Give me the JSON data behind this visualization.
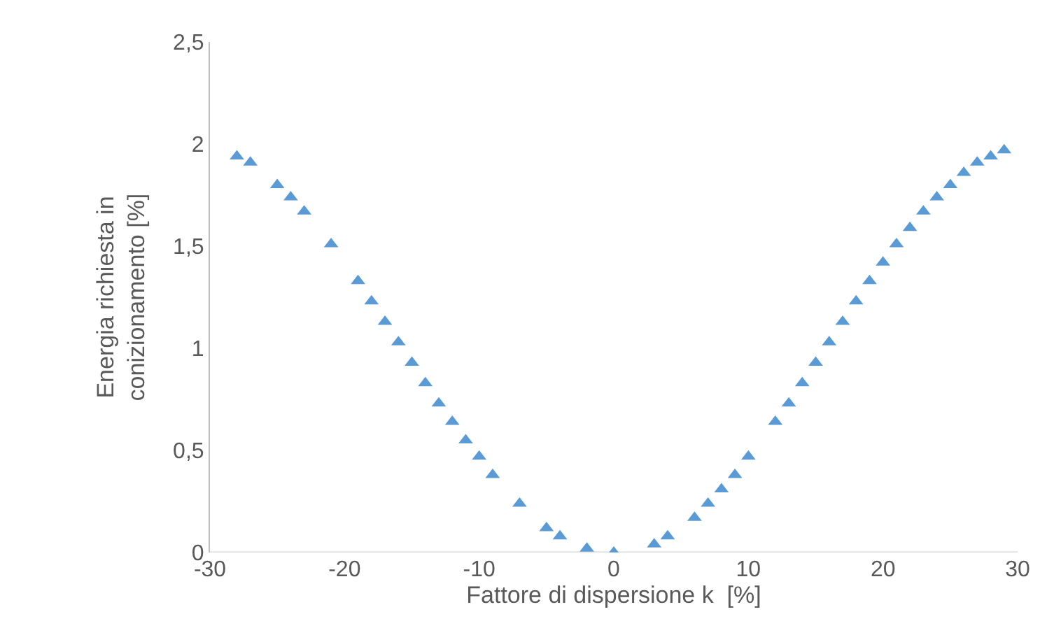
{
  "chart_data": {
    "type": "scatter",
    "xlabel": "Fattore di dispersione k  [%]",
    "ylabel": "Energia richiesta in\nconizionamento [%]",
    "x": [
      -28,
      -27,
      -25,
      -24,
      -23,
      -21,
      -19,
      -18,
      -17,
      -16,
      -15,
      -14,
      -13,
      -12,
      -11,
      -10,
      -9,
      -7,
      -5,
      -4,
      -2,
      0,
      3,
      4,
      6,
      7,
      8,
      9,
      10,
      12,
      13,
      14,
      15,
      16,
      17,
      18,
      19,
      20,
      21,
      22,
      23,
      24,
      25,
      26,
      27,
      28,
      29
    ],
    "series": [
      {
        "color": "#5b9bd5",
        "values": [
          1.94,
          1.91,
          1.8,
          1.74,
          1.67,
          1.51,
          1.33,
          1.23,
          1.13,
          1.03,
          0.93,
          0.83,
          0.73,
          0.64,
          0.55,
          0.47,
          0.38,
          0.24,
          0.12,
          0.08,
          0.02,
          0.0,
          0.04,
          0.08,
          0.17,
          0.24,
          0.31,
          0.38,
          0.47,
          0.64,
          0.73,
          0.83,
          0.93,
          1.03,
          1.13,
          1.23,
          1.33,
          1.42,
          1.51,
          1.59,
          1.67,
          1.74,
          1.8,
          1.86,
          1.91,
          1.94,
          1.97
        ]
      }
    ],
    "xlim": [
      -30,
      30
    ],
    "xticks": [
      -30,
      -20,
      -10,
      0,
      10,
      20,
      30
    ],
    "ylim": [
      0,
      2.5
    ],
    "yticks": [
      0,
      {
        "value": 0.5,
        "label": "0,5"
      },
      1,
      {
        "value": 1.5,
        "label": "1,5"
      },
      2,
      {
        "value": 2.5,
        "label": "2,5"
      }
    ],
    "marker": "triangle"
  }
}
